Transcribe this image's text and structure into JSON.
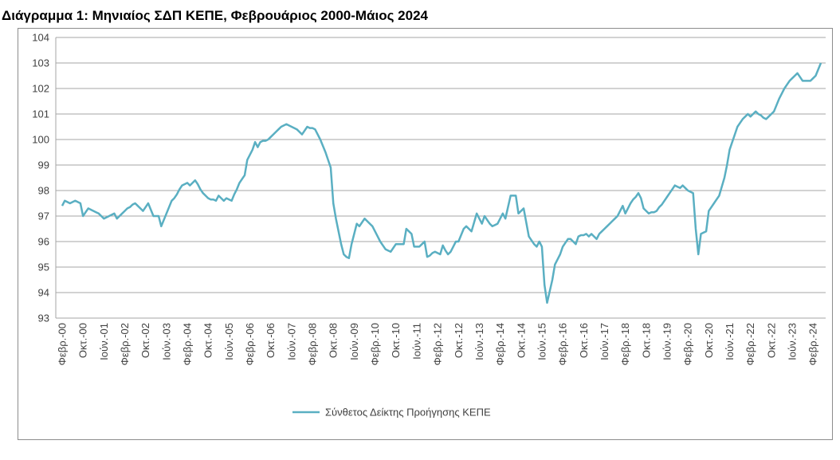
{
  "chart_data": {
    "type": "line",
    "title": "Διάγραμμα 1: Μηνιαίος ΣΔΠ ΚΕΠΕ, Φεβρουάριος 2000-Μάιος 2024",
    "categories": [
      "Φεβρ.-00",
      null,
      null,
      null,
      null,
      null,
      null,
      null,
      "Οκτ.-00",
      null,
      null,
      null,
      null,
      null,
      null,
      null,
      "Ιούν.-01",
      null,
      null,
      null,
      null,
      null,
      null,
      null,
      "Φεβρ.-02",
      null,
      null,
      null,
      null,
      null,
      null,
      null,
      "Οκτ.-02",
      null,
      null,
      null,
      null,
      null,
      null,
      null,
      "Ιούν.-03",
      null,
      null,
      null,
      null,
      null,
      null,
      null,
      "Φεβρ.-04",
      null,
      null,
      null,
      null,
      null,
      null,
      null,
      "Οκτ.-04",
      null,
      null,
      null,
      null,
      null,
      null,
      null,
      "Ιούν.-05",
      null,
      null,
      null,
      null,
      null,
      null,
      null,
      "Φεβρ.-06",
      null,
      null,
      null,
      null,
      null,
      null,
      null,
      "Οκτ.-06",
      null,
      null,
      null,
      null,
      null,
      null,
      null,
      "Ιούν.-07",
      null,
      null,
      null,
      null,
      null,
      null,
      null,
      "Φεβρ.-08",
      null,
      null,
      null,
      null,
      null,
      null,
      null,
      "Οκτ.-08",
      null,
      null,
      null,
      null,
      null,
      null,
      null,
      "Ιούν.-09",
      null,
      null,
      null,
      null,
      null,
      null,
      null,
      "Φεβρ.-10",
      null,
      null,
      null,
      null,
      null,
      null,
      null,
      "Οκτ.-10",
      null,
      null,
      null,
      null,
      null,
      null,
      null,
      "Ιούν.-11",
      null,
      null,
      null,
      null,
      null,
      null,
      null,
      "Φεβρ.-12",
      null,
      null,
      null,
      null,
      null,
      null,
      null,
      "Οκτ.-12",
      null,
      null,
      null,
      null,
      null,
      null,
      null,
      "Ιούν.-13",
      null,
      null,
      null,
      null,
      null,
      null,
      null,
      "Φεβρ.-14",
      null,
      null,
      null,
      null,
      null,
      null,
      null,
      "Οκτ.-14",
      null,
      null,
      null,
      null,
      null,
      null,
      null,
      "Ιούν.-15",
      null,
      null,
      null,
      null,
      null,
      null,
      null,
      "Φεβρ.-16",
      null,
      null,
      null,
      null,
      null,
      null,
      null,
      "Οκτ.-16",
      null,
      null,
      null,
      null,
      null,
      null,
      null,
      "Ιούν.-17",
      null,
      null,
      null,
      null,
      null,
      null,
      null,
      "Φεβρ.-18",
      null,
      null,
      null,
      null,
      null,
      null,
      null,
      "Οκτ.-18",
      null,
      null,
      null,
      null,
      null,
      null,
      null,
      "Ιούν.-19",
      null,
      null,
      null,
      null,
      null,
      null,
      null,
      "Φεβρ.-20",
      null,
      null,
      null,
      null,
      null,
      null,
      null,
      "Οκτ.-20",
      null,
      null,
      null,
      null,
      null,
      null,
      null,
      "Ιούν.-21",
      null,
      null,
      null,
      null,
      null,
      null,
      null,
      "Φεβρ.-22",
      null,
      null,
      null,
      null,
      null,
      null,
      null,
      "Οκτ.-22",
      null,
      null,
      null,
      null,
      null,
      null,
      null,
      "Ιούν.-23",
      null,
      null,
      null,
      null,
      null,
      null,
      null,
      "Φεβρ.-24",
      null,
      null,
      null
    ],
    "series": [
      {
        "name": "Σύνθετος Δείκτης Προήγησης ΚΕΠΕ",
        "color": "#5aafc2",
        "values": [
          97.4,
          97.6,
          97.55,
          97.5,
          97.55,
          97.6,
          97.55,
          97.5,
          97.0,
          97.15,
          97.3,
          97.25,
          97.2,
          97.15,
          97.1,
          97.0,
          96.9,
          96.95,
          97.0,
          97.05,
          97.1,
          96.9,
          97.0,
          97.1,
          97.2,
          97.3,
          97.35,
          97.45,
          97.5,
          97.4,
          97.3,
          97.2,
          97.35,
          97.5,
          97.25,
          97.0,
          97.0,
          97.0,
          96.6,
          96.85,
          97.1,
          97.35,
          97.6,
          97.7,
          97.85,
          98.05,
          98.2,
          98.25,
          98.3,
          98.2,
          98.3,
          98.4,
          98.25,
          98.05,
          97.9,
          97.8,
          97.7,
          97.65,
          97.65,
          97.6,
          97.8,
          97.7,
          97.6,
          97.7,
          97.65,
          97.6,
          97.85,
          98.05,
          98.3,
          98.45,
          98.6,
          99.2,
          99.4,
          99.6,
          99.9,
          99.7,
          99.9,
          99.95,
          99.95,
          100.0,
          100.1,
          100.2,
          100.3,
          100.4,
          100.5,
          100.55,
          100.6,
          100.55,
          100.5,
          100.45,
          100.4,
          100.3,
          100.2,
          100.35,
          100.5,
          100.45,
          100.45,
          100.4,
          100.2,
          100.0,
          99.75,
          99.5,
          99.2,
          98.9,
          97.5,
          96.9,
          96.4,
          95.9,
          95.5,
          95.4,
          95.35,
          95.9,
          96.3,
          96.7,
          96.6,
          96.75,
          96.9,
          96.8,
          96.7,
          96.6,
          96.4,
          96.2,
          96.0,
          95.85,
          95.7,
          95.65,
          95.6,
          95.75,
          95.9,
          95.9,
          95.9,
          95.9,
          96.5,
          96.4,
          96.3,
          95.8,
          95.8,
          95.8,
          95.9,
          96.0,
          95.4,
          95.45,
          95.55,
          95.6,
          95.55,
          95.5,
          95.85,
          95.65,
          95.5,
          95.6,
          95.8,
          96.0,
          96.0,
          96.25,
          96.5,
          96.6,
          96.5,
          96.4,
          96.75,
          97.1,
          96.9,
          96.7,
          97.0,
          96.85,
          96.7,
          96.6,
          96.65,
          96.7,
          96.9,
          97.1,
          96.9,
          97.35,
          97.8,
          97.8,
          97.8,
          97.1,
          97.2,
          97.3,
          96.75,
          96.2,
          96.05,
          95.9,
          95.8,
          96.0,
          95.8,
          94.3,
          93.6,
          94.05,
          94.5,
          95.1,
          95.3,
          95.5,
          95.8,
          95.95,
          96.1,
          96.1,
          96.0,
          95.9,
          96.2,
          96.25,
          96.25,
          96.3,
          96.2,
          96.3,
          96.2,
          96.1,
          96.3,
          96.4,
          96.5,
          96.6,
          96.7,
          96.8,
          96.9,
          97.0,
          97.2,
          97.4,
          97.1,
          97.3,
          97.5,
          97.65,
          97.75,
          97.9,
          97.7,
          97.3,
          97.2,
          97.1,
          97.15,
          97.15,
          97.2,
          97.35,
          97.45,
          97.6,
          97.75,
          97.9,
          98.05,
          98.2,
          98.15,
          98.1,
          98.2,
          98.1,
          98.0,
          97.95,
          97.9,
          96.5,
          95.5,
          96.3,
          96.35,
          96.4,
          97.2,
          97.35,
          97.5,
          97.65,
          97.8,
          98.15,
          98.5,
          99.0,
          99.6,
          99.9,
          100.2,
          100.5,
          100.65,
          100.8,
          100.9,
          101.0,
          100.9,
          101.0,
          101.1,
          101.0,
          100.95,
          100.85,
          100.8,
          100.9,
          101.0,
          101.1,
          101.35,
          101.6,
          101.8,
          102.0,
          102.15,
          102.3,
          102.4,
          102.5,
          102.6,
          102.45,
          102.3,
          102.3,
          102.3,
          102.3,
          102.4,
          102.5,
          102.75,
          103.0
        ]
      }
    ],
    "ylim": [
      93,
      104
    ],
    "yticks": [
      93,
      94,
      95,
      96,
      97,
      98,
      99,
      100,
      101,
      102,
      103,
      104
    ],
    "grid": true,
    "legend": "bottom"
  }
}
